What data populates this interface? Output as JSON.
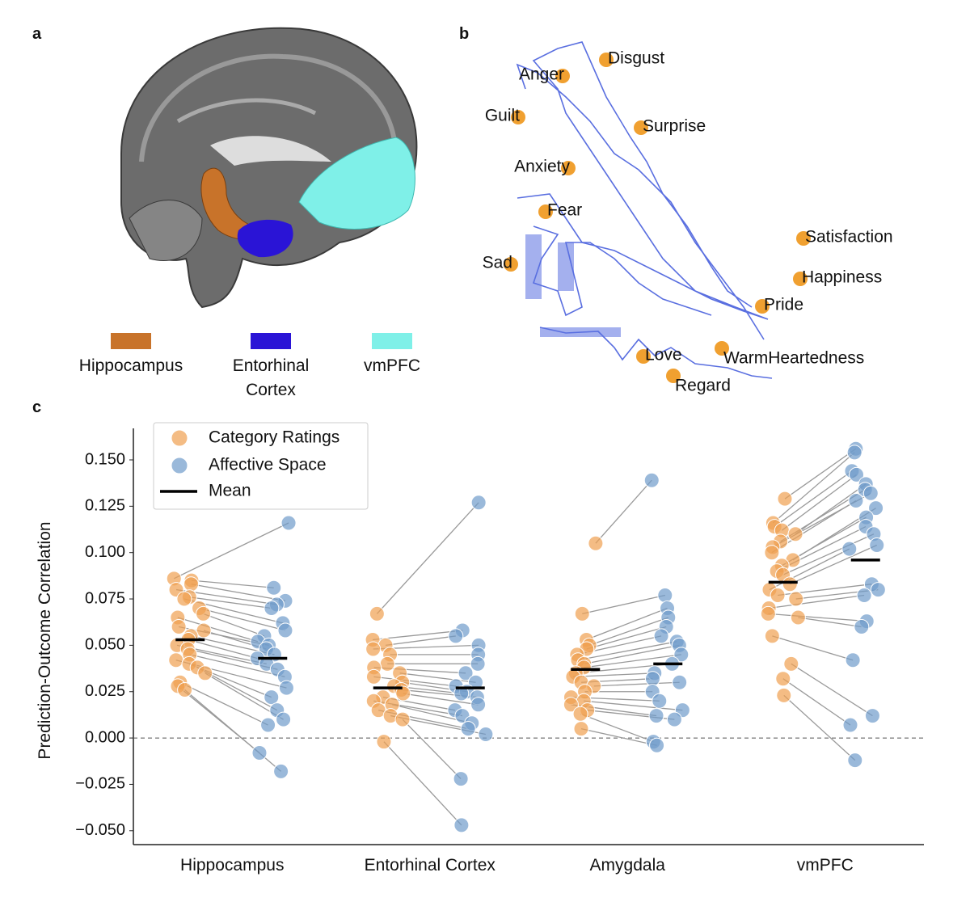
{
  "panels": {
    "a": "a",
    "b": "b",
    "c": "c"
  },
  "brain_legend": [
    {
      "label": "Hippocampus",
      "color": "#c8732a"
    },
    {
      "label": "Entorhinal Cortex",
      "color": "#2a14d6"
    },
    {
      "label": "vmPFC",
      "color": "#7ff0e8"
    }
  ],
  "emotion_map": {
    "point_color": "#f0a030",
    "line_color": "#5a6fe0",
    "labels": [
      "Disgust",
      "Anger",
      "Guilt",
      "Surprise",
      "Anxiety",
      "Fear",
      "Satisfaction",
      "Happiness",
      "Pride",
      "Sad",
      "Love",
      "WarmHeartedness",
      "Regard"
    ]
  },
  "chart_data": {
    "type": "paired-strip",
    "y_label": "Prediction-Outcome Correlation",
    "categories": [
      "Hippocampus",
      "Entorhinal Cortex",
      "Amygdala",
      "vmPFC"
    ],
    "ylim": [
      -0.0575,
      0.167
    ],
    "yticks": [
      {
        "value": -0.05,
        "label": "−0.050"
      },
      {
        "value": -0.025,
        "label": "−0.025"
      },
      {
        "value": 0,
        "label": "0.000"
      },
      {
        "value": 0.025,
        "label": "0.025"
      },
      {
        "value": 0.05,
        "label": "0.050"
      },
      {
        "value": 0.075,
        "label": "0.075"
      },
      {
        "value": 0.1,
        "label": "0.100"
      },
      {
        "value": 0.125,
        "label": "0.125"
      },
      {
        "value": 0.15,
        "label": "0.150"
      }
    ],
    "zero_line": true,
    "mean_name": "Mean",
    "mean_color": "#000000",
    "pair_line_color": "#9a9a9a",
    "series": [
      {
        "name": "Category Ratings",
        "color": "#f0a050",
        "values": [
          [
            0.086,
            0.085,
            0.083,
            0.08,
            0.076,
            0.075,
            0.07,
            0.067,
            0.065,
            0.06,
            0.058,
            0.055,
            0.053,
            0.05,
            0.048,
            0.045,
            0.042,
            0.04,
            0.038,
            0.035,
            0.03,
            0.028,
            0.026
          ],
          [
            0.067,
            0.053,
            0.05,
            0.048,
            0.045,
            0.04,
            0.038,
            0.035,
            0.033,
            0.03,
            0.028,
            0.026,
            0.024,
            0.022,
            0.02,
            0.018,
            0.015,
            0.012,
            0.01,
            -0.002
          ],
          [
            0.105,
            0.067,
            0.053,
            0.05,
            0.048,
            0.045,
            0.042,
            0.04,
            0.038,
            0.035,
            0.033,
            0.03,
            0.028,
            0.025,
            0.022,
            0.02,
            0.018,
            0.015,
            0.013,
            0.005
          ],
          [
            0.129,
            0.116,
            0.114,
            0.112,
            0.11,
            0.106,
            0.103,
            0.1,
            0.096,
            0.093,
            0.09,
            0.088,
            0.083,
            0.08,
            0.077,
            0.075,
            0.07,
            0.067,
            0.065,
            0.055,
            0.04,
            0.032,
            0.023
          ]
        ],
        "means": [
          0.053,
          0.027,
          0.037,
          0.084
        ]
      },
      {
        "name": "Affective Space",
        "color": "#6f9bcb",
        "values": [
          [
            0.116,
            0.081,
            0.074,
            0.072,
            0.07,
            0.062,
            0.058,
            0.055,
            0.052,
            0.05,
            0.048,
            0.045,
            0.043,
            0.04,
            0.037,
            0.033,
            0.027,
            0.022,
            0.015,
            0.01,
            0.007,
            -0.008,
            -0.018
          ],
          [
            0.127,
            0.058,
            0.055,
            0.05,
            0.045,
            0.04,
            0.035,
            0.03,
            0.028,
            0.025,
            0.024,
            0.022,
            0.018,
            0.015,
            0.012,
            0.008,
            0.005,
            0.002,
            -0.022,
            -0.047
          ],
          [
            0.139,
            0.077,
            0.07,
            0.065,
            0.06,
            0.055,
            0.052,
            0.05,
            0.045,
            0.04,
            0.035,
            0.032,
            0.03,
            0.025,
            0.02,
            0.015,
            0.012,
            0.01,
            -0.002,
            -0.004
          ],
          [
            0.156,
            0.154,
            0.144,
            0.142,
            0.137,
            0.134,
            0.132,
            0.128,
            0.124,
            0.119,
            0.114,
            0.11,
            0.104,
            0.102,
            0.083,
            0.08,
            0.077,
            0.063,
            0.06,
            0.042,
            0.012,
            0.007,
            -0.012
          ]
        ],
        "means": [
          0.043,
          0.027,
          0.04,
          0.096
        ]
      }
    ]
  }
}
